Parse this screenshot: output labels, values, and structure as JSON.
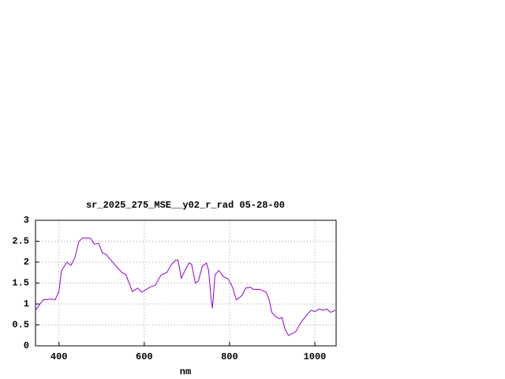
{
  "chart_data": {
    "type": "line",
    "title": "sr_2025_275_MSE__y02_r_rad 05-28-00",
    "x_label": "nm",
    "x": [
      345,
      363,
      382,
      391,
      400,
      406,
      419,
      428,
      437,
      447,
      456,
      474,
      483,
      493,
      502,
      511,
      530,
      548,
      557,
      572,
      585,
      594,
      613,
      626,
      640,
      653,
      664,
      674,
      679,
      687,
      698,
      705,
      711,
      720,
      727,
      736,
      746,
      751,
      757,
      760,
      766,
      775,
      786,
      797,
      807,
      816,
      829,
      838,
      849,
      856,
      871,
      886,
      893,
      899,
      908,
      917,
      923,
      930,
      938,
      949,
      956,
      967,
      978,
      991,
      1000,
      1010,
      1019,
      1028,
      1037,
      1048
    ],
    "series": [
      {
        "name": "sr_2025_275_MSE__y02_r_rad",
        "color": "#9400d3",
        "values": [
          0.85,
          1.1,
          1.12,
          1.1,
          1.3,
          1.8,
          2.0,
          1.92,
          2.1,
          2.5,
          2.58,
          2.57,
          2.43,
          2.45,
          2.22,
          2.18,
          1.95,
          1.75,
          1.7,
          1.3,
          1.38,
          1.28,
          1.4,
          1.45,
          1.7,
          1.75,
          1.95,
          2.05,
          2.05,
          1.62,
          1.85,
          1.98,
          1.95,
          1.5,
          1.55,
          1.9,
          1.98,
          1.8,
          1.1,
          0.9,
          1.7,
          1.8,
          1.65,
          1.6,
          1.4,
          1.1,
          1.2,
          1.38,
          1.4,
          1.35,
          1.35,
          1.28,
          1.1,
          0.8,
          0.7,
          0.65,
          0.68,
          0.4,
          0.25,
          0.3,
          0.35,
          0.55,
          0.7,
          0.85,
          0.82,
          0.88,
          0.85,
          0.88,
          0.8,
          0.85
        ]
      }
    ],
    "xlim": [
      345,
      1050
    ],
    "ylim": [
      0,
      3
    ],
    "xticks": [
      400,
      600,
      800,
      1000
    ],
    "yticks": [
      0,
      0.5,
      1,
      1.5,
      2,
      2.5,
      3
    ],
    "grid": true
  }
}
